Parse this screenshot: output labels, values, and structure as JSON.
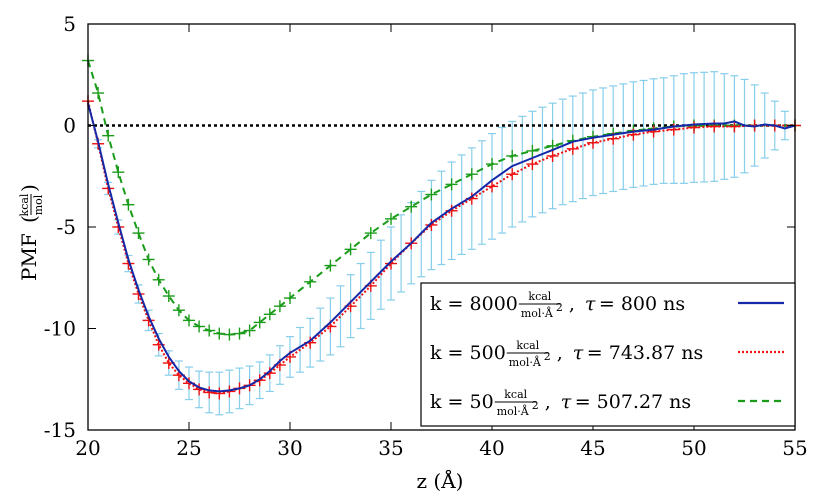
{
  "chart_data": {
    "type": "line",
    "xlabel": "z (Å)",
    "ylabel": "PMF",
    "ylabel_unit_num": "kcal",
    "ylabel_unit_den": "mol",
    "xlim": [
      20,
      55
    ],
    "ylim": [
      -15,
      5
    ],
    "xticks": [
      20,
      25,
      30,
      35,
      40,
      45,
      50,
      55
    ],
    "yticks": [
      5,
      0,
      -5,
      -10,
      -15
    ],
    "grid": false,
    "legend_position": "bottom-right",
    "zero_line": 0,
    "series": [
      {
        "name": "k = 8000",
        "k": "k = 8000",
        "unit_num": "kcal",
        "unit_den": "mol·Å",
        "unit_exp": "2",
        "tau_symbol": "τ",
        "tau": "= 800 ns",
        "color": "#1428a8",
        "style": "solid",
        "x": [
          20.0,
          20.5,
          21.0,
          21.5,
          22.0,
          22.5,
          23.0,
          23.5,
          24.0,
          24.5,
          25.0,
          25.5,
          26.0,
          26.5,
          27.0,
          27.5,
          28.0,
          28.5,
          29.0,
          29.5,
          30.0,
          31.0,
          32.0,
          33.0,
          34.0,
          35.0,
          36.0,
          37.0,
          38.0,
          39.0,
          40.0,
          41.0,
          42.0,
          43.0,
          44.0,
          45.0,
          46.0,
          47.0,
          48.0,
          49.0,
          50.0,
          51.0,
          51.5,
          52.0,
          52.5,
          53.0,
          53.5,
          54.0,
          54.5,
          55.0
        ],
        "y": [
          1.1,
          -0.8,
          -2.9,
          -4.8,
          -6.6,
          -8.1,
          -9.4,
          -10.5,
          -11.4,
          -12.1,
          -12.6,
          -12.9,
          -13.05,
          -13.1,
          -13.05,
          -12.95,
          -12.8,
          -12.5,
          -12.1,
          -11.6,
          -11.2,
          -10.6,
          -9.7,
          -8.7,
          -7.7,
          -6.7,
          -5.8,
          -4.8,
          -4.1,
          -3.5,
          -2.7,
          -2.0,
          -1.6,
          -1.2,
          -0.8,
          -0.6,
          -0.45,
          -0.3,
          -0.2,
          -0.05,
          0.05,
          0.1,
          0.1,
          0.2,
          0.0,
          -0.05,
          0.05,
          0.0,
          -0.15,
          0.0
        ]
      },
      {
        "name": "k = 500",
        "k": "k = 500",
        "unit_num": "kcal",
        "unit_den": "mol·Å",
        "unit_exp": "2",
        "tau_symbol": "τ",
        "tau": "= 743.87 ns",
        "color": "#ee1111",
        "style": "dotted",
        "x": [
          20.0,
          20.5,
          21.0,
          21.5,
          22.0,
          22.5,
          23.0,
          23.5,
          24.0,
          24.5,
          25.0,
          25.5,
          26.0,
          26.5,
          27.0,
          27.5,
          28.0,
          28.5,
          29.0,
          29.5,
          30.0,
          31.0,
          32.0,
          33.0,
          34.0,
          35.0,
          36.0,
          37.0,
          38.0,
          39.0,
          40.0,
          41.0,
          42.0,
          43.0,
          44.0,
          45.0,
          46.0,
          47.0,
          48.0,
          49.0,
          50.0,
          51.0,
          52.0,
          53.0,
          54.0,
          55.0
        ],
        "y": [
          1.2,
          -0.9,
          -3.1,
          -5.0,
          -6.8,
          -8.3,
          -9.6,
          -10.8,
          -11.7,
          -12.3,
          -12.7,
          -13.0,
          -13.15,
          -13.2,
          -13.1,
          -12.95,
          -12.8,
          -12.55,
          -12.2,
          -11.8,
          -11.4,
          -10.7,
          -9.9,
          -8.9,
          -7.9,
          -6.8,
          -5.8,
          -4.9,
          -4.2,
          -3.6,
          -3.0,
          -2.4,
          -1.9,
          -1.5,
          -1.15,
          -0.85,
          -0.65,
          -0.45,
          -0.3,
          -0.2,
          -0.1,
          -0.05,
          -0.05,
          0.0,
          0.0,
          0.0
        ]
      },
      {
        "name": "k = 50",
        "k": "k = 50",
        "unit_num": "kcal",
        "unit_den": "mol·Å",
        "unit_exp": "2",
        "tau_symbol": "τ",
        "tau": "= 507.27 ns",
        "color": "#1a9c1a",
        "style": "dashed",
        "x": [
          20.0,
          20.5,
          21.0,
          21.5,
          22.0,
          22.5,
          23.0,
          23.5,
          24.0,
          24.5,
          25.0,
          25.5,
          26.0,
          26.5,
          27.0,
          27.5,
          28.0,
          28.5,
          29.0,
          29.5,
          30.0,
          31.0,
          32.0,
          33.0,
          34.0,
          35.0,
          36.0,
          37.0,
          38.0,
          39.0,
          40.0,
          41.0,
          42.0,
          43.0,
          44.0,
          45.0,
          46.0,
          47.0,
          48.0,
          49.0,
          50.0,
          51.0,
          52.0,
          53.0,
          54.0,
          55.0
        ],
        "y": [
          3.2,
          1.6,
          -0.5,
          -2.3,
          -3.9,
          -5.3,
          -6.6,
          -7.6,
          -8.4,
          -9.1,
          -9.6,
          -9.9,
          -10.1,
          -10.25,
          -10.3,
          -10.25,
          -10.1,
          -9.7,
          -9.3,
          -8.9,
          -8.5,
          -7.7,
          -6.9,
          -6.1,
          -5.3,
          -4.6,
          -4.0,
          -3.4,
          -2.9,
          -2.4,
          -1.9,
          -1.5,
          -1.25,
          -1.0,
          -0.75,
          -0.55,
          -0.4,
          -0.25,
          -0.15,
          -0.05,
          0.0,
          0.0,
          0.0,
          0.0,
          0.0,
          0.0
        ]
      }
    ],
    "error_bars": {
      "color": "#87ceeb",
      "x": [
        20.5,
        21.0,
        21.5,
        22.0,
        22.5,
        23.0,
        23.5,
        24.0,
        24.5,
        25.0,
        25.5,
        26.0,
        26.5,
        27.0,
        27.5,
        28.0,
        28.5,
        29.0,
        29.5,
        30.0,
        30.5,
        31.0,
        31.5,
        32.0,
        32.5,
        33.0,
        33.5,
        34.0,
        34.5,
        35.0,
        35.5,
        36.0,
        36.5,
        37.0,
        37.5,
        38.0,
        38.5,
        39.0,
        39.5,
        40.0,
        40.5,
        41.0,
        41.5,
        42.0,
        42.5,
        43.0,
        43.5,
        44.0,
        44.5,
        45.0,
        45.5,
        46.0,
        46.5,
        47.0,
        47.5,
        48.0,
        48.5,
        49.0,
        49.5,
        50.0,
        50.5,
        51.0,
        51.5,
        52.0,
        52.5,
        53.0,
        53.5,
        54.0,
        54.5
      ],
      "center": [
        -0.9,
        -3.1,
        -5.0,
        -6.8,
        -8.3,
        -9.6,
        -10.8,
        -11.7,
        -12.3,
        -12.7,
        -13.0,
        -13.15,
        -13.2,
        -13.1,
        -12.95,
        -12.8,
        -12.55,
        -12.2,
        -11.8,
        -11.4,
        -11.05,
        -10.7,
        -10.3,
        -9.9,
        -9.4,
        -8.9,
        -8.4,
        -7.9,
        -7.35,
        -6.8,
        -6.3,
        -5.8,
        -5.35,
        -4.9,
        -4.55,
        -4.2,
        -3.9,
        -3.6,
        -3.3,
        -3.0,
        -2.7,
        -2.4,
        -2.15,
        -1.9,
        -1.7,
        -1.5,
        -1.3,
        -1.15,
        -1.0,
        -0.85,
        -0.75,
        -0.65,
        -0.55,
        -0.45,
        -0.38,
        -0.3,
        -0.25,
        -0.2,
        -0.15,
        -0.1,
        -0.08,
        -0.05,
        -0.05,
        -0.05,
        -0.03,
        0.0,
        0.0,
        0.0,
        0.0
      ],
      "half": [
        0.2,
        0.3,
        0.35,
        0.4,
        0.45,
        0.5,
        0.55,
        0.6,
        0.7,
        0.8,
        0.9,
        1.0,
        1.05,
        1.05,
        1.0,
        0.95,
        0.9,
        0.9,
        0.95,
        1.0,
        1.1,
        1.2,
        1.3,
        1.4,
        1.5,
        1.55,
        1.6,
        1.65,
        1.7,
        1.8,
        1.9,
        2.0,
        2.1,
        2.2,
        2.3,
        2.4,
        2.45,
        2.5,
        2.55,
        2.6,
        2.6,
        2.6,
        2.6,
        2.6,
        2.6,
        2.6,
        2.6,
        2.6,
        2.6,
        2.6,
        2.6,
        2.6,
        2.6,
        2.6,
        2.6,
        2.6,
        2.6,
        2.65,
        2.7,
        2.7,
        2.7,
        2.7,
        2.6,
        2.5,
        2.3,
        2.0,
        1.6,
        1.2,
        0.7
      ]
    }
  }
}
